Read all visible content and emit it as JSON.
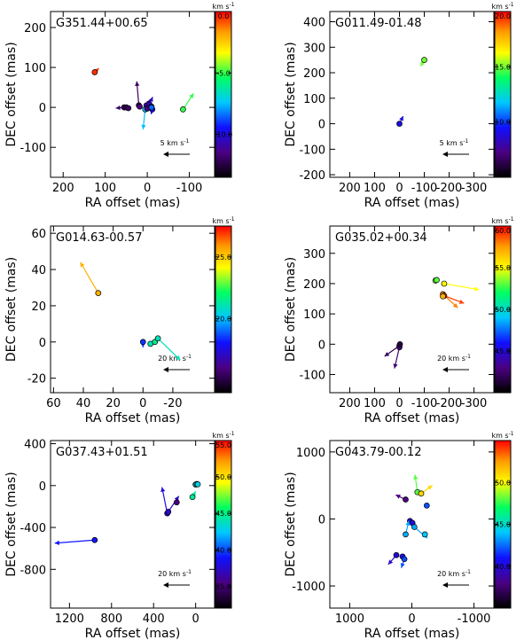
{
  "figure": {
    "colors": {
      "axis": "#000000",
      "point_edge": "#000000"
    }
  },
  "chart_data": [
    {
      "type": "scatter",
      "title": "G351.44+00.65",
      "xlabel": "RA offset (mas)",
      "ylabel": "DEC offset (mas)",
      "xlim": [
        230,
        -160
      ],
      "ylim": [
        -175,
        240
      ],
      "xticks": [
        200,
        100,
        0,
        -100
      ],
      "yticks": [
        -100,
        0,
        100,
        200
      ],
      "cbar": {
        "unit": "km s^-1",
        "range": [
          -13.5,
          0
        ],
        "ticks": [
          0,
          -5,
          -10
        ],
        "tick_labels": [
          "0.0",
          "-5.0",
          "-10.0"
        ]
      },
      "ref_arrow": {
        "label": "5 km s^-1"
      },
      "points": [
        {
          "x": 125,
          "y": 88,
          "v": -0.5,
          "dx": -10,
          "dy": 10
        },
        {
          "x": 55,
          "y": 0,
          "v": -12.0,
          "dx": 20,
          "dy": -2
        },
        {
          "x": 50,
          "y": 0,
          "v": -12.0
        },
        {
          "x": 45,
          "y": -2,
          "v": -12.0
        },
        {
          "x": 20,
          "y": 5,
          "v": -12.0,
          "dx": 5,
          "dy": 60
        },
        {
          "x": 18,
          "y": 2,
          "v": -11.5
        },
        {
          "x": 5,
          "y": -5,
          "v": -7.5,
          "dx": 5,
          "dy": -50
        },
        {
          "x": 2,
          "y": 5,
          "v": -11.0,
          "dx": -10,
          "dy": 15
        },
        {
          "x": 0,
          "y": -3,
          "v": -11.5
        },
        {
          "x": -5,
          "y": 8,
          "v": -10.5,
          "dx": -8,
          "dy": 18
        },
        {
          "x": -10,
          "y": 2,
          "v": -10.5
        },
        {
          "x": -12,
          "y": -5,
          "v": -9.5,
          "dx": 3,
          "dy": -12
        },
        {
          "x": -10,
          "y": 0,
          "v": -8.5
        },
        {
          "x": -85,
          "y": -5,
          "v": -5.0,
          "dx": -25,
          "dy": 40
        }
      ]
    },
    {
      "type": "scatter",
      "title": "G011.49-01.48",
      "xlabel": "RA offset (mas)",
      "ylabel": "DEC offset (mas)",
      "xlim": [
        280,
        -380
      ],
      "ylim": [
        -210,
        440
      ],
      "xticks": [
        200,
        100,
        0,
        -100,
        -200,
        -300
      ],
      "yticks": [
        -200,
        -100,
        0,
        100,
        200,
        300,
        400
      ],
      "cbar": {
        "unit": "km s^-1",
        "range": [
          5,
          20
        ],
        "ticks": [
          20,
          15,
          10,
          5
        ],
        "tick_labels": [
          "20.0",
          "15.0",
          "10.0",
          "5.0"
        ]
      },
      "ref_arrow": {
        "label": "5 km s^-1"
      },
      "points": [
        {
          "x": -100,
          "y": 250,
          "v": 15.0,
          "dx": 15,
          "dy": -25
        },
        {
          "x": 0,
          "y": 0,
          "v": 9.0,
          "dx": -15,
          "dy": 30
        }
      ]
    },
    {
      "type": "scatter",
      "title": "G014.63-00.57",
      "xlabel": "RA offset (mas)",
      "ylabel": "DEC offset (mas)",
      "xlim": [
        62,
        -48
      ],
      "ylim": [
        -28,
        64
      ],
      "xticks": [
        60,
        40,
        20,
        0,
        -20
      ],
      "yticks": [
        -20,
        0,
        20,
        40,
        60
      ],
      "cbar": {
        "unit": "km s^-1",
        "range": [
          14,
          27.5
        ],
        "ticks": [
          25,
          20
        ],
        "tick_labels": [
          "25.0",
          "20.0"
        ]
      },
      "ref_arrow": {
        "label": "20 km s^-1"
      },
      "points": [
        {
          "x": 30,
          "y": 27,
          "v": 25.5,
          "dx": 12,
          "dy": 17
        },
        {
          "x": 0,
          "y": 0,
          "v": 18.5,
          "dx": 0,
          "dy": -3
        },
        {
          "x": -5,
          "y": -1,
          "v": 21.0
        },
        {
          "x": -8,
          "y": 0,
          "v": 21.5
        },
        {
          "x": -10,
          "y": 2,
          "v": 21.0,
          "dx": -15,
          "dy": -12
        }
      ]
    },
    {
      "type": "scatter",
      "title": "G035.02+00.34",
      "xlabel": "RA offset (mas)",
      "ylabel": "DEC offset (mas)",
      "xlim": [
        280,
        -380
      ],
      "ylim": [
        -160,
        390
      ],
      "xticks": [
        200,
        100,
        0,
        -100,
        -200,
        -300
      ],
      "yticks": [
        -100,
        0,
        100,
        200,
        300
      ],
      "cbar": {
        "unit": "km s^-1",
        "range": [
          40,
          60
        ],
        "ticks": [
          60,
          55,
          50,
          45,
          40
        ],
        "tick_labels": [
          "60.0",
          "55.0",
          "50.0",
          "45.0",
          "40.0"
        ]
      },
      "ref_arrow": {
        "label": "20 km s^-1"
      },
      "points": [
        {
          "x": -145,
          "y": 210,
          "v": 53.5
        },
        {
          "x": -150,
          "y": 212,
          "v": 53.0
        },
        {
          "x": -180,
          "y": 200,
          "v": 55.0,
          "dx": -140,
          "dy": -20
        },
        {
          "x": -175,
          "y": 165,
          "v": 58.0,
          "dx": -60,
          "dy": -45
        },
        {
          "x": -180,
          "y": 160,
          "v": 59.0,
          "dx": -80,
          "dy": -25
        },
        {
          "x": -175,
          "y": 158,
          "v": 57.0
        },
        {
          "x": 0,
          "y": -5,
          "v": 42.0,
          "dx": 60,
          "dy": -35
        },
        {
          "x": 0,
          "y": -10,
          "v": 42.5,
          "dx": 20,
          "dy": -70
        },
        {
          "x": -2,
          "y": 0,
          "v": 41.5
        }
      ]
    },
    {
      "type": "scatter",
      "title": "G037.43+01.51",
      "xlabel": "RA offset (mas)",
      "ylabel": "DEC offset (mas)",
      "xlim": [
        1380,
        -180
      ],
      "ylim": [
        -1170,
        430
      ],
      "xticks": [
        1200,
        800,
        400,
        0
      ],
      "yticks": [
        -800,
        -400,
        0,
        400
      ],
      "cbar": {
        "unit": "km s^-1",
        "range": [
          32,
          55
        ],
        "ticks": [
          55,
          50,
          45,
          40,
          35
        ],
        "tick_labels": [
          "55.0",
          "50.0",
          "45.0",
          "40.0",
          "35.0"
        ]
      },
      "ref_arrow": {
        "label": "20 km s^-1"
      },
      "points": [
        {
          "x": 960,
          "y": -520,
          "v": 39.0,
          "dx": 380,
          "dy": -30
        },
        {
          "x": 270,
          "y": -265,
          "v": 38.0,
          "dx": 50,
          "dy": 250
        },
        {
          "x": 260,
          "y": -250,
          "v": 37.5,
          "dx": -100,
          "dy": 150
        },
        {
          "x": 180,
          "y": -160,
          "v": 35.5
        },
        {
          "x": 0,
          "y": 10,
          "v": 43.0,
          "dx": -20,
          "dy": 5
        },
        {
          "x": -10,
          "y": 15,
          "v": 43.5
        },
        {
          "x": -20,
          "y": 12,
          "v": 43.0
        },
        {
          "x": 30,
          "y": -110,
          "v": 44.5,
          "dx": -30,
          "dy": 55
        }
      ]
    },
    {
      "type": "scatter",
      "title": "G043.79-00.12",
      "xlabel": "RA offset (mas)",
      "ylabel": "DEC offset (mas)",
      "xlim": [
        1320,
        -1320
      ],
      "ylim": [
        -1330,
        1170
      ],
      "xticks": [
        1000,
        0,
        -1000
      ],
      "yticks": [
        -1000,
        0,
        1000
      ],
      "cbar": {
        "unit": "km s^-1",
        "range": [
          35,
          55
        ],
        "ticks": [
          50,
          45,
          40,
          35
        ],
        "tick_labels": [
          "50.0",
          "45.0",
          "40.0",
          "35.0"
        ]
      },
      "ref_arrow": {
        "label": "20 km s^-1"
      },
      "points": [
        {
          "x": -90,
          "y": 400,
          "v": 48.0,
          "dx": 40,
          "dy": 260
        },
        {
          "x": -150,
          "y": 380,
          "v": 51.0,
          "dx": -180,
          "dy": 120
        },
        {
          "x": 100,
          "y": 290,
          "v": 38.0,
          "dx": 160,
          "dy": 70
        },
        {
          "x": -240,
          "y": 200,
          "v": 42.0
        },
        {
          "x": 30,
          "y": -30,
          "v": 40.0
        },
        {
          "x": -10,
          "y": -60,
          "v": 40.5
        },
        {
          "x": -40,
          "y": -120,
          "v": 43.5,
          "dx": -200,
          "dy": -160
        },
        {
          "x": -210,
          "y": -230,
          "v": 44.0,
          "dx": -40,
          "dy": -60
        },
        {
          "x": 100,
          "y": -230,
          "v": 43.5,
          "dx": -50,
          "dy": 200
        },
        {
          "x": 250,
          "y": -540,
          "v": 40.0,
          "dx": 130,
          "dy": -140
        },
        {
          "x": 150,
          "y": -560,
          "v": 40.5
        },
        {
          "x": 120,
          "y": -600,
          "v": 42.0,
          "dx": 50,
          "dy": -130
        }
      ]
    }
  ]
}
